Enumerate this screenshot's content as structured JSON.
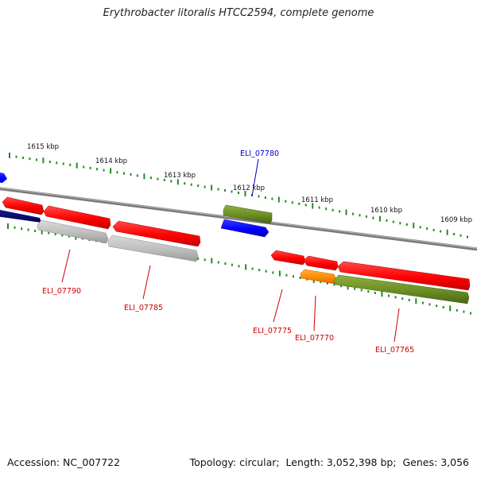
{
  "title": "Erythrobacter litoralis HTCC2594, complete genome",
  "footer": {
    "accession_label": "Accession:",
    "accession": "NC_007722",
    "topology_label": "Topology:",
    "topology": "circular",
    "length_label": "Length:",
    "length": "3,052,398 bp",
    "genes_label": "Genes:",
    "genes": "3,056"
  },
  "scale": {
    "unit": "kbp",
    "ticks": [
      {
        "kbp": 1615,
        "label": "1615 kbp"
      },
      {
        "kbp": 1614,
        "label": "1614 kbp"
      },
      {
        "kbp": 1613,
        "label": "1613 kbp"
      },
      {
        "kbp": 1612,
        "label": "1612 kbp"
      },
      {
        "kbp": 1611,
        "label": "1611 kbp"
      },
      {
        "kbp": 1610,
        "label": "1610 kbp"
      },
      {
        "kbp": 1609,
        "label": "1609 kbp"
      }
    ]
  },
  "colors": {
    "red": "#ff0000",
    "blue": "#0000ff",
    "navy": "#00007f",
    "olive": "#6b8e23",
    "gray": "#bdbdbd",
    "orange": "#ff8c00",
    "tick": "#228b22",
    "backbone": "#7a7a7a",
    "label_red": "#cc0000",
    "label_blue": "#0000cc"
  },
  "genes": [
    {
      "id": "blue-gene-left-edge",
      "color": "blue",
      "strand": "forward"
    },
    {
      "id": "red-gene-1",
      "color": "red",
      "strand": "forward"
    },
    {
      "id": "red-gene-2",
      "color": "red",
      "strand": "forward"
    },
    {
      "id": "red-gene-3",
      "color": "red",
      "strand": "forward"
    },
    {
      "id": "olive-gene-top",
      "color": "olive",
      "strand": "forward"
    },
    {
      "id": "blue-gene-ELI_07780",
      "color": "blue",
      "strand": "forward"
    },
    {
      "id": "red-gene-4",
      "color": "red",
      "strand": "forward"
    },
    {
      "id": "red-gene-5",
      "color": "red",
      "strand": "forward"
    },
    {
      "id": "red-gene-6",
      "color": "red",
      "strand": "forward"
    },
    {
      "id": "navy-gene-left",
      "color": "navy",
      "strand": "reverse"
    },
    {
      "id": "gray-gene-1",
      "color": "gray",
      "strand": "reverse"
    },
    {
      "id": "gray-gene-2",
      "color": "gray",
      "strand": "reverse"
    },
    {
      "id": "orange-gene",
      "color": "orange",
      "strand": "reverse"
    },
    {
      "id": "olive-gene-bottom",
      "color": "olive",
      "strand": "reverse"
    }
  ],
  "gene_labels": [
    {
      "text": "ELI_07780",
      "color": "blue"
    },
    {
      "text": "ELI_07790",
      "color": "red"
    },
    {
      "text": "ELI_07785",
      "color": "red"
    },
    {
      "text": "ELI_07775",
      "color": "red"
    },
    {
      "text": "ELI_07770",
      "color": "red"
    },
    {
      "text": "ELI_07765",
      "color": "red"
    }
  ]
}
